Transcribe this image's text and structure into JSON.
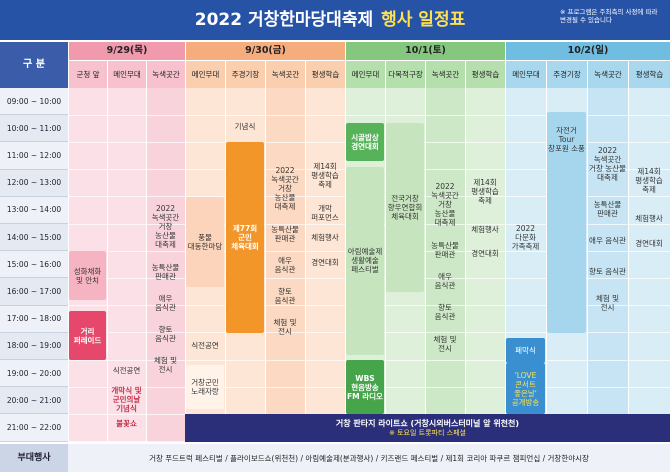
{
  "header": {
    "title": "2022 거창한마당대축제",
    "title_highlight": "행사 일정표",
    "note": "※ 프로그램은 주최측의 사정에 따라 변경될 수 있습니다"
  },
  "table": {
    "corner": "구 분",
    "times": [
      "09:00 ~ 10:00",
      "10:00 ~ 11:00",
      "11:00 ~ 12:00",
      "12:00 ~ 13:00",
      "13:00 ~ 14:00",
      "14:00 ~ 15:00",
      "15:00 ~ 16:00",
      "16:00 ~ 17:00",
      "17:00 ~ 18:00",
      "18:00 ~ 19:00",
      "19:00 ~ 20:00",
      "20:00 ~ 21:00",
      "21:00 ~ 22:00"
    ],
    "days": [
      {
        "date": "9/29(목)",
        "venues": [
          {
            "name": "군청 앞",
            "events": [
              "성화채화 및 안치",
              "거리 퍼레이드"
            ]
          },
          {
            "name": "메인무대",
            "events": [
              "식전공연",
              "개막식 및 군민의날 기념식",
              "불꽃쇼"
            ]
          },
          {
            "name": "녹색곳간",
            "events": [
              "2022 녹색곳간 거창 농산물 대축제",
              "농특산물 판매관",
              "애우 음식관",
              "향토 음식관",
              "체험 및 전시"
            ]
          }
        ]
      },
      {
        "date": "9/30(금)",
        "venues": [
          {
            "name": "메인무대",
            "events": [
              "풍물 대동한마당",
              "식전공연",
              "거창군민 노래자랑"
            ]
          },
          {
            "name": "주경기장",
            "events": [
              "기념식",
              "제77회 군민 체육대회"
            ]
          },
          {
            "name": "녹색곳간",
            "events": [
              "2022 녹색곳간 거창 농산물 대축제",
              "농특산물 판매관",
              "애우 음식관",
              "향토 음식관",
              "체험 및 전시"
            ]
          },
          {
            "name": "평생학습",
            "events": [
              "제14회 평생학습 축제",
              "개막 퍼포먼스",
              "체험행사",
              "경연대회"
            ]
          }
        ]
      },
      {
        "date": "10/1(토)",
        "venues": [
          {
            "name": "메인무대",
            "events": [
              "시골밥상 경연대회",
              "아림예술제 생활예술 페스티벌",
              "WBS 현음방송 FM 라디오"
            ]
          },
          {
            "name": "다목적구장",
            "events": [
              "전국거창 향우연합회 체육대회"
            ]
          },
          {
            "name": "녹색곳간",
            "events": [
              "2022 녹색곳간 거창 농산물 대축제",
              "농특산물 판매관",
              "애우 음식관",
              "향토 음식관",
              "체험 및 전시"
            ]
          },
          {
            "name": "평생학습",
            "events": [
              "제14회 평생학습 축제",
              "체험행사",
              "경연대회"
            ]
          }
        ]
      },
      {
        "date": "10/2(일)",
        "venues": [
          {
            "name": "메인무대",
            "events": [
              "2022 다문화 가족축제",
              "폐막식",
              "'LOVE 콘서트 좋은날' 공개방송"
            ]
          },
          {
            "name": "주경기장",
            "events": [
              "자전거 Tour 창포원 소풍"
            ]
          },
          {
            "name": "녹색곳간",
            "events": [
              "2022 녹색곳간 거창 농산물 대축제",
              "농특산물 판매관",
              "애우 음식관",
              "향토 음식관",
              "체험 및 전시"
            ]
          },
          {
            "name": "평생학습",
            "events": [
              "제14회 평생학습 축제",
              "체험행사",
              "경연대회"
            ]
          }
        ]
      }
    ],
    "banner": {
      "title": "거창 판타지 라이트쇼 (거창시외버스터미널 앞 위천천)",
      "subtitle": "※ 토요일 트롯파티 스페셜"
    },
    "extra": {
      "label": "부대행사",
      "text": "거창 푸드트럭 페스티벌 / 플라이보드쇼(위천천) / 아림예술제(분과행사) / 키즈랜드 페스티벌 / 제1회 코리아 파쿠르 챔피언십 / 거창한야시장"
    }
  }
}
